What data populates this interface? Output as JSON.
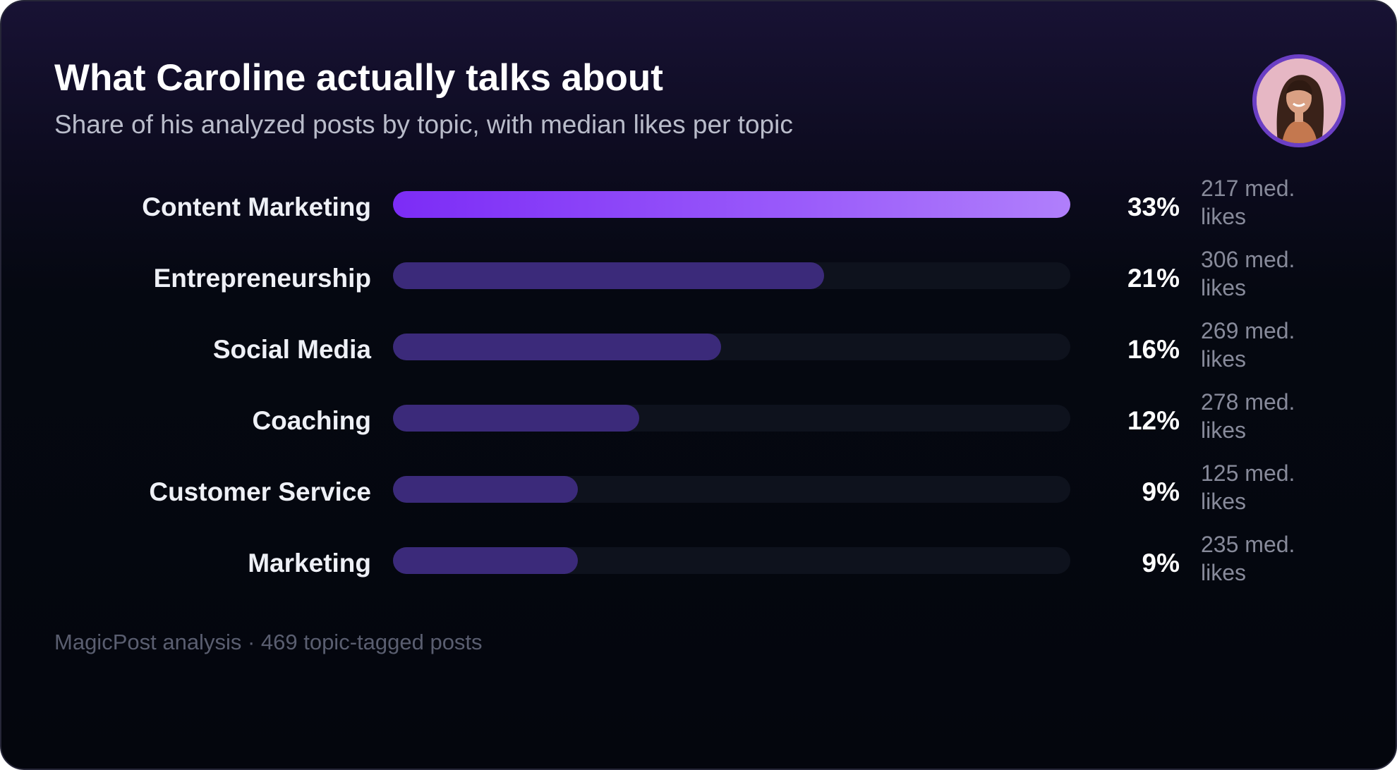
{
  "header": {
    "title": "What Caroline actually talks about",
    "subtitle": "Share of his analyzed posts by topic, with median likes per topic"
  },
  "footer": {
    "source": "MagicPost analysis · 469 topic-tagged posts"
  },
  "colors": {
    "lead_bar_start": "#7c2cf6",
    "lead_bar_end": "#b07ffb",
    "bar": "#3b2a7a",
    "track": "#0e121d",
    "avatar_ring": "#6b3fc4"
  },
  "chart_data": {
    "type": "bar",
    "orientation": "horizontal",
    "title": "What Caroline actually talks about",
    "subtitle": "Share of his analyzed posts by topic, with median likes per topic",
    "categories": [
      "Content Marketing",
      "Entrepreneurship",
      "Social Media",
      "Coaching",
      "Customer Service",
      "Marketing"
    ],
    "values": [
      33,
      21,
      16,
      12,
      9,
      9
    ],
    "value_labels": [
      "33%",
      "21%",
      "16%",
      "12%",
      "9%",
      "9%"
    ],
    "median_likes_labels": [
      "217 med. likes",
      "306 med. likes",
      "269 med. likes",
      "278 med. likes",
      "125 med. likes",
      "235 med. likes"
    ],
    "xlim": [
      0,
      33
    ],
    "grid": false,
    "legend": "none"
  }
}
